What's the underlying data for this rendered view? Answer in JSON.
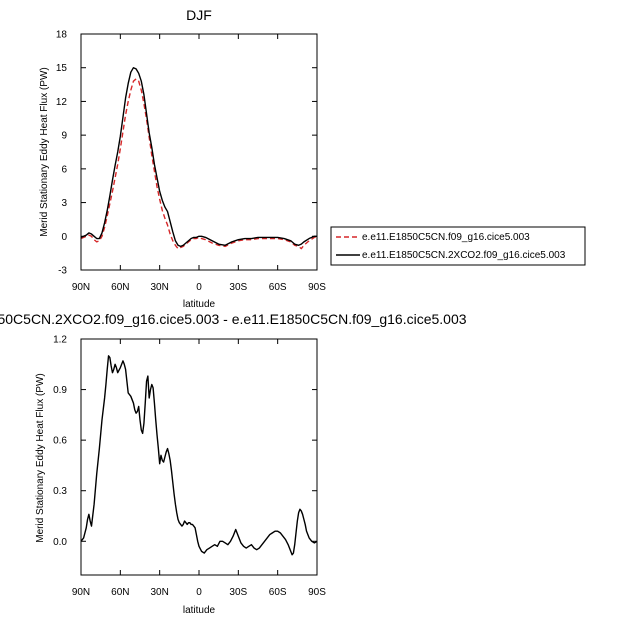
{
  "chart_data": [
    {
      "type": "line",
      "title": "DJF",
      "xlabel": "latitude",
      "ylabel": "Merid Stationary Eddy Heat Flux (PW)",
      "xlim": [
        -90,
        90
      ],
      "ylim": [
        -3,
        18
      ],
      "x_ticks": [
        -90,
        -60,
        -30,
        0,
        30,
        60,
        90
      ],
      "x_tick_labels": [
        "90N",
        "60N",
        "30N",
        "0",
        "30S",
        "60S",
        "90S"
      ],
      "y_ticks": [
        -3,
        0,
        3,
        6,
        9,
        12,
        15,
        18
      ],
      "y_tick_labels": [
        "-3",
        "0",
        "3",
        "6",
        "9",
        "12",
        "15",
        "18"
      ],
      "legend_position": "right",
      "series": [
        {
          "name": "e.e11.E1850C5CN.f09_g16.cice5.003",
          "color": "#d62728",
          "dash": "dashed",
          "x": [
            -90,
            -86,
            -84,
            -82,
            -80,
            -78,
            -76,
            -74,
            -72,
            -70,
            -68,
            -66,
            -64,
            -62,
            -60,
            -58,
            -56,
            -54,
            -52,
            -50,
            -48,
            -46,
            -44,
            -42,
            -40,
            -38,
            -36,
            -34,
            -32,
            -30,
            -28,
            -26,
            -24,
            -22,
            -20,
            -18,
            -16,
            -14,
            -12,
            -10,
            -8,
            -6,
            -4,
            -2,
            0,
            2,
            5,
            10,
            15,
            20,
            25,
            30,
            35,
            40,
            45,
            50,
            55,
            60,
            65,
            70,
            73,
            76,
            78,
            80,
            84,
            88,
            90
          ],
          "y": [
            -0.2,
            0.0,
            0.1,
            0.0,
            -0.3,
            -0.5,
            -0.4,
            0.0,
            0.8,
            1.8,
            2.9,
            4.0,
            5.2,
            6.4,
            7.8,
            9.3,
            10.8,
            12.0,
            13.0,
            13.8,
            14.0,
            13.8,
            13.0,
            11.8,
            10.4,
            8.8,
            7.2,
            5.8,
            4.4,
            3.3,
            2.3,
            1.6,
            1.0,
            0.2,
            -0.4,
            -0.8,
            -1.1,
            -1.0,
            -0.9,
            -0.7,
            -0.5,
            -0.3,
            -0.2,
            -0.2,
            -0.1,
            -0.2,
            -0.3,
            -0.6,
            -0.8,
            -0.9,
            -0.6,
            -0.4,
            -0.3,
            -0.3,
            -0.2,
            -0.2,
            -0.2,
            -0.2,
            -0.3,
            -0.5,
            -0.8,
            -0.9,
            -1.1,
            -0.8,
            -0.4,
            -0.1,
            0.0
          ]
        },
        {
          "name": "e.e11.E1850C5CN.2XCO2.f09_g16.cice5.003",
          "color": "#000000",
          "dash": "solid",
          "x": [
            -90,
            -86,
            -84,
            -82,
            -80,
            -78,
            -76,
            -74,
            -72,
            -70,
            -68,
            -66,
            -64,
            -62,
            -60,
            -58,
            -56,
            -54,
            -52,
            -50,
            -48,
            -46,
            -44,
            -42,
            -40,
            -38,
            -36,
            -34,
            -32,
            -30,
            -28,
            -26,
            -24,
            -22,
            -20,
            -18,
            -16,
            -14,
            -12,
            -10,
            -8,
            -6,
            -4,
            -2,
            0,
            2,
            5,
            10,
            15,
            20,
            25,
            30,
            35,
            40,
            45,
            50,
            55,
            60,
            65,
            70,
            73,
            76,
            78,
            80,
            84,
            88,
            90
          ],
          "y": [
            -0.1,
            0.1,
            0.3,
            0.2,
            0.0,
            -0.2,
            -0.2,
            0.3,
            1.2,
            2.3,
            3.6,
            5.0,
            6.3,
            7.5,
            8.9,
            10.6,
            12.3,
            13.6,
            14.6,
            15.0,
            14.9,
            14.5,
            13.8,
            12.6,
            10.9,
            9.2,
            7.9,
            6.4,
            5.2,
            4.0,
            3.2,
            2.6,
            2.2,
            1.3,
            0.4,
            -0.4,
            -0.8,
            -0.9,
            -0.8,
            -0.6,
            -0.4,
            -0.2,
            -0.1,
            -0.1,
            0.0,
            0.0,
            -0.1,
            -0.4,
            -0.7,
            -0.8,
            -0.5,
            -0.3,
            -0.2,
            -0.2,
            -0.1,
            -0.1,
            -0.1,
            -0.1,
            -0.2,
            -0.4,
            -0.7,
            -0.8,
            -0.7,
            -0.5,
            -0.2,
            0.0,
            0.0
          ]
        }
      ]
    },
    {
      "type": "line",
      "title": "50C5CN.2XCO2.f09_g16.cice5.003 - e.e11.E1850C5CN.f09_g16.cice5.003",
      "xlabel": "latitude",
      "ylabel": "Merid Stationary Eddy Heat Flux (PW)",
      "xlim": [
        -90,
        90
      ],
      "ylim": [
        -0.2,
        1.2
      ],
      "x_ticks": [
        -90,
        -60,
        -30,
        0,
        30,
        60,
        90
      ],
      "x_tick_labels": [
        "90N",
        "60N",
        "30N",
        "0",
        "30S",
        "60S",
        "90S"
      ],
      "y_ticks": [
        0.0,
        0.3,
        0.6,
        0.9,
        1.2
      ],
      "y_tick_labels": [
        "0.0",
        "0.3",
        "0.6",
        "0.9",
        "1.2"
      ],
      "series": [
        {
          "color": "#000000",
          "dash": "solid",
          "x": [
            -90,
            -88,
            -86,
            -85,
            -84,
            -83,
            -82,
            -80,
            -78,
            -76,
            -74,
            -72,
            -71,
            -70,
            -69,
            -68,
            -67,
            -66,
            -65,
            -64,
            -63,
            -62,
            -60,
            -58,
            -57,
            -56,
            -55,
            -54,
            -52,
            -50,
            -49,
            -48,
            -47,
            -46,
            -45,
            -44,
            -43,
            -42,
            -41,
            -40,
            -39,
            -38,
            -37,
            -36,
            -35,
            -34,
            -33,
            -32,
            -31,
            -30,
            -29,
            -28,
            -27,
            -26,
            -25,
            -24,
            -23,
            -22,
            -21,
            -20,
            -19,
            -18,
            -17,
            -16,
            -15,
            -14,
            -13,
            -12,
            -11,
            -10,
            -9,
            -8,
            -7,
            -6,
            -5,
            -4,
            -3,
            -2,
            -1,
            0,
            2,
            4,
            6,
            8,
            10,
            12,
            14,
            16,
            18,
            20,
            22,
            24,
            26,
            28,
            30,
            32,
            34,
            36,
            38,
            40,
            42,
            44,
            46,
            48,
            50,
            52,
            54,
            56,
            58,
            60,
            62,
            64,
            66,
            68,
            69,
            70,
            71,
            72,
            73,
            74,
            75,
            76,
            77,
            78,
            79,
            80,
            81,
            82,
            84,
            86,
            88,
            90
          ],
          "y": [
            0.0,
            0.02,
            0.08,
            0.13,
            0.16,
            0.12,
            0.09,
            0.22,
            0.4,
            0.55,
            0.72,
            0.85,
            0.93,
            1.02,
            1.1,
            1.09,
            1.04,
            1.0,
            1.02,
            1.05,
            1.03,
            1.0,
            1.03,
            1.07,
            1.05,
            1.02,
            0.95,
            0.88,
            0.86,
            0.82,
            0.78,
            0.76,
            0.77,
            0.8,
            0.72,
            0.66,
            0.64,
            0.7,
            0.82,
            0.95,
            0.98,
            0.85,
            0.9,
            0.93,
            0.91,
            0.82,
            0.72,
            0.63,
            0.55,
            0.46,
            0.51,
            0.48,
            0.47,
            0.5,
            0.53,
            0.55,
            0.52,
            0.48,
            0.42,
            0.35,
            0.28,
            0.22,
            0.17,
            0.13,
            0.11,
            0.1,
            0.09,
            0.1,
            0.12,
            0.11,
            0.1,
            0.11,
            0.11,
            0.1,
            0.1,
            0.09,
            0.08,
            0.04,
            0.0,
            -0.03,
            -0.06,
            -0.07,
            -0.05,
            -0.04,
            -0.03,
            -0.02,
            -0.03,
            0.0,
            0.0,
            -0.01,
            -0.02,
            0.0,
            0.03,
            0.07,
            0.03,
            -0.01,
            -0.03,
            -0.04,
            -0.03,
            -0.02,
            -0.04,
            -0.05,
            -0.04,
            -0.02,
            0.0,
            0.02,
            0.04,
            0.05,
            0.06,
            0.06,
            0.05,
            0.03,
            0.01,
            -0.02,
            -0.04,
            -0.06,
            -0.08,
            -0.07,
            -0.02,
            0.05,
            0.12,
            0.17,
            0.19,
            0.18,
            0.16,
            0.13,
            0.1,
            0.06,
            0.02,
            0.0,
            -0.01,
            0.0
          ]
        }
      ]
    }
  ]
}
